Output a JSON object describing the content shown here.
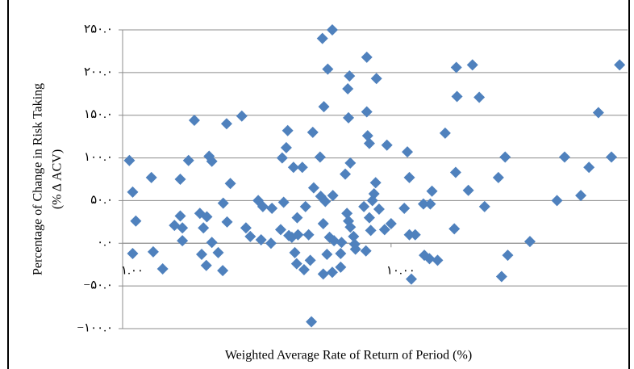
{
  "chart_data": {
    "type": "scatter",
    "xlabel": "Weighted Average Rate of Return of Period (%)",
    "ylabel": [
      "Percentage of Change in Risk Taking",
      "(% Δ ACV)"
    ],
    "xscale": "log",
    "xlim": [
      1,
      76
    ],
    "xticks": [
      {
        "value": 1,
        "label": "۱.۰۰"
      },
      {
        "value": 10,
        "label": "۱۰.۰۰"
      }
    ],
    "ylim": [
      -100,
      250
    ],
    "yticks": [
      {
        "value": 250,
        "label": "۲۵۰.۰"
      },
      {
        "value": 200,
        "label": "۲۰۰.۰"
      },
      {
        "value": 150,
        "label": "۱۵۰.۰"
      },
      {
        "value": 100,
        "label": "۱۰۰.۰"
      },
      {
        "value": 50,
        "label": "۵۰.۰"
      },
      {
        "value": 0,
        "label": "۰.۰"
      },
      {
        "value": -50,
        "label": "−۵۰.۰"
      },
      {
        "value": -100,
        "label": "−۱۰۰.۰"
      }
    ],
    "grid": true,
    "color": "#4f81bd",
    "x": [
      1.06,
      1.09,
      1.12,
      1.09,
      1.28,
      1.3,
      1.41,
      1.56,
      1.64,
      1.67,
      1.64,
      1.67,
      1.76,
      1.85,
      1.94,
      1.97,
      2.0,
      2.05,
      2.06,
      2.1,
      2.15,
      2.15,
      2.27,
      2.36,
      2.37,
      2.44,
      2.45,
      2.52,
      2.78,
      2.88,
      2.99,
      3.2,
      3.28,
      3.33,
      3.57,
      3.6,
      3.88,
      3.93,
      3.98,
      4.07,
      4.12,
      4.16,
      4.27,
      4.33,
      4.38,
      4.45,
      4.47,
      4.5,
      4.67,
      4.74,
      4.8,
      4.93,
      5.0,
      5.05,
      5.11,
      5.15,
      5.44,
      5.47,
      5.55,
      5.59,
      5.59,
      5.62,
      5.69,
      5.77,
      5.81,
      5.9,
      6.04,
      6.04,
      6.07,
      6.13,
      6.49,
      6.49,
      6.54,
      6.75,
      6.85,
      6.9,
      6.94,
      6.94,
      7.0,
      7.05,
      7.05,
      7.25,
      7.32,
      7.37,
      7.92,
      8.06,
      8.12,
      8.12,
      8.18,
      8.3,
      8.3,
      8.4,
      8.52,
      8.64,
      8.76,
      8.82,
      9.02,
      9.46,
      9.65,
      10.0,
      11.2,
      11.5,
      11.7,
      11.7,
      11.9,
      12.3,
      13.2,
      13.3,
      13.9,
      14.0,
      14.2,
      14.9,
      15.9,
      17.2,
      17.4,
      17.5,
      17.6,
      19.4,
      20.1,
      21.3,
      22.3,
      25.1,
      25.8,
      26.6,
      27.2,
      32.9,
      41.5,
      44.3,
      50.9,
      54.6,
      59.2,
      66.2,
      71.0
    ],
    "values": [
      97,
      60,
      26,
      -12,
      77,
      -10,
      -30,
      21,
      32,
      3,
      75,
      18,
      97,
      144,
      35,
      -13,
      18,
      -26,
      31,
      102,
      96,
      1,
      -11,
      -32,
      47,
      140,
      25,
      70,
      149,
      18,
      8,
      50,
      4,
      43,
      0,
      41,
      16,
      100,
      48,
      112,
      132,
      9,
      7,
      89,
      -11,
      -24,
      30,
      10,
      89,
      -31,
      43,
      10,
      -20,
      -92,
      130,
      65,
      101,
      55,
      240,
      -36,
      23,
      160,
      49,
      -13,
      204,
      7,
      250,
      -34,
      56,
      3,
      -28,
      -12,
      1,
      81,
      35,
      181,
      147,
      26,
      196,
      19,
      94,
      8,
      -1,
      -7,
      43,
      -9,
      218,
      154,
      126,
      117,
      30,
      15,
      50,
      58,
      71,
      193,
      40,
      16,
      115,
      23,
      41,
      107,
      77,
      10,
      -42,
      10,
      46,
      -14,
      -18,
      46,
      61,
      -20,
      129,
      17,
      83,
      206,
      172,
      62,
      209,
      171,
      43,
      77,
      -39,
      101,
      -14,
      2,
      50,
      101,
      56,
      89,
      153,
      101,
      209
    ]
  }
}
